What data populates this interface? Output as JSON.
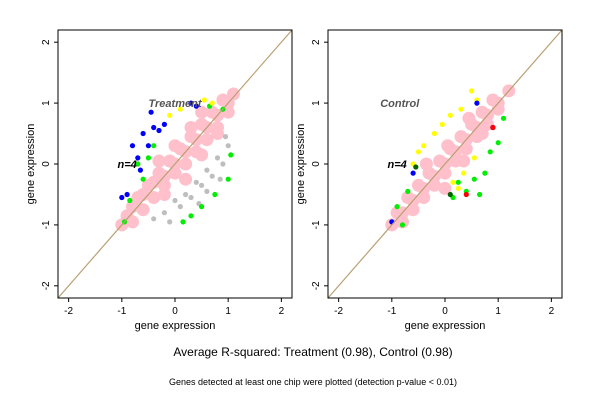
{
  "caption": "Average R-squared: Treatment (0.98), Control (0.98)",
  "footnote": "Genes detected at least one chip were plotted (detection p-value < 0.01)",
  "chart_data": [
    {
      "type": "scatter",
      "title": "Treatment",
      "annotation": "n=4",
      "xlabel": "gene expression",
      "ylabel": "gene expression",
      "xlim": [
        -2.2,
        2.2
      ],
      "ylim": [
        -2.2,
        2.2
      ],
      "x_ticks": [
        -2,
        -1,
        0,
        1,
        2
      ],
      "y_ticks": [
        -2,
        -1,
        0,
        1,
        2
      ],
      "grid": false,
      "reference_line": {
        "slope": 1,
        "intercept": 0,
        "color": "#b9a072"
      },
      "series": [
        {
          "color": "#ffc0cb",
          "role": "bulk",
          "points": [
            [
              -1.0,
              -1.0
            ],
            [
              -0.8,
              -0.7
            ],
            [
              -0.6,
              -0.5
            ],
            [
              -0.4,
              -0.3
            ],
            [
              -0.2,
              -0.2
            ],
            [
              0.0,
              0.0
            ],
            [
              0.2,
              0.2
            ],
            [
              0.4,
              0.4
            ],
            [
              0.6,
              0.6
            ],
            [
              0.8,
              0.8
            ],
            [
              1.0,
              1.0
            ],
            [
              1.1,
              1.15
            ],
            [
              -0.9,
              -0.85
            ],
            [
              -0.7,
              -0.55
            ],
            [
              -0.5,
              -0.35
            ],
            [
              -0.3,
              -0.15
            ],
            [
              -0.1,
              0.05
            ],
            [
              0.1,
              0.25
            ],
            [
              0.3,
              0.45
            ],
            [
              0.5,
              0.65
            ],
            [
              0.7,
              0.85
            ],
            [
              0.9,
              1.05
            ],
            [
              -0.8,
              -0.95
            ],
            [
              -0.6,
              -0.75
            ],
            [
              -0.4,
              -0.55
            ],
            [
              -0.2,
              -0.35
            ],
            [
              0.0,
              -0.15
            ],
            [
              0.2,
              0.0
            ],
            [
              0.4,
              0.2
            ],
            [
              0.6,
              0.4
            ],
            [
              0.8,
              0.6
            ],
            [
              1.0,
              0.85
            ],
            [
              -0.3,
              0.05
            ],
            [
              0.0,
              0.3
            ],
            [
              0.3,
              0.6
            ],
            [
              0.5,
              0.85
            ],
            [
              -0.2,
              -0.5
            ],
            [
              0.2,
              -0.25
            ],
            [
              0.5,
              0.15
            ],
            [
              0.8,
              0.5
            ]
          ]
        },
        {
          "color": "#bebebe",
          "role": "grey",
          "points": [
            [
              0.0,
              -0.6
            ],
            [
              0.2,
              -0.5
            ],
            [
              0.4,
              -0.3
            ],
            [
              0.6,
              -0.1
            ],
            [
              0.8,
              0.1
            ],
            [
              1.0,
              0.3
            ],
            [
              -0.2,
              -0.8
            ],
            [
              0.1,
              -0.7
            ],
            [
              0.3,
              -0.55
            ],
            [
              0.5,
              -0.35
            ],
            [
              0.7,
              -0.2
            ],
            [
              0.9,
              0.0
            ],
            [
              0.6,
              -0.45
            ],
            [
              0.85,
              -0.25
            ],
            [
              -0.4,
              -0.9
            ],
            [
              0.45,
              -0.65
            ],
            [
              0.95,
              0.45
            ],
            [
              -0.1,
              -0.95
            ]
          ]
        },
        {
          "color": "#00ee00",
          "role": "green",
          "points": [
            [
              -0.7,
              0.0
            ],
            [
              -0.5,
              0.1
            ],
            [
              -0.85,
              -0.6
            ],
            [
              0.3,
              -0.85
            ],
            [
              0.5,
              -0.7
            ],
            [
              0.75,
              -0.5
            ],
            [
              1.0,
              -0.25
            ],
            [
              1.05,
              0.15
            ],
            [
              0.15,
              -0.95
            ],
            [
              -0.6,
              -0.25
            ],
            [
              0.9,
              0.9
            ],
            [
              -0.95,
              -0.95
            ],
            [
              0.65,
              0.95
            ],
            [
              -0.4,
              0.3
            ]
          ]
        },
        {
          "color": "#0000ff",
          "role": "blue",
          "points": [
            [
              -0.6,
              0.5
            ],
            [
              -0.4,
              0.6
            ],
            [
              -0.8,
              0.3
            ],
            [
              -0.5,
              0.3
            ],
            [
              -0.3,
              0.55
            ],
            [
              -0.45,
              0.85
            ],
            [
              -0.7,
              0.1
            ],
            [
              -0.9,
              -0.5
            ],
            [
              0.3,
              1.0
            ],
            [
              -0.2,
              0.65
            ],
            [
              -0.65,
              -0.1
            ],
            [
              -1.0,
              -0.55
            ],
            [
              0.4,
              0.95
            ]
          ]
        },
        {
          "color": "#ffff00",
          "role": "yellow",
          "points": [
            [
              0.55,
              1.05
            ],
            [
              0.7,
              1.0
            ],
            [
              0.1,
              0.9
            ],
            [
              -0.1,
              0.8
            ]
          ]
        }
      ]
    },
    {
      "type": "scatter",
      "title": "Control",
      "annotation": "n=4",
      "xlabel": "gene expression",
      "ylabel": "gene expression",
      "xlim": [
        -2.2,
        2.2
      ],
      "ylim": [
        -2.2,
        2.2
      ],
      "x_ticks": [
        -2,
        -1,
        0,
        1,
        2
      ],
      "y_ticks": [
        -2,
        -1,
        0,
        1,
        2
      ],
      "grid": false,
      "reference_line": {
        "slope": 1,
        "intercept": 0,
        "color": "#b9a072"
      },
      "series": [
        {
          "color": "#ffc0cb",
          "role": "bulk",
          "points": [
            [
              -1.0,
              -1.0
            ],
            [
              -0.8,
              -0.8
            ],
            [
              -0.6,
              -0.6
            ],
            [
              -0.4,
              -0.4
            ],
            [
              -0.2,
              -0.2
            ],
            [
              0.0,
              0.0
            ],
            [
              0.2,
              0.2
            ],
            [
              0.4,
              0.4
            ],
            [
              0.6,
              0.6
            ],
            [
              0.8,
              0.8
            ],
            [
              1.0,
              1.0
            ],
            [
              1.2,
              1.2
            ],
            [
              -0.9,
              -0.8
            ],
            [
              -0.7,
              -0.55
            ],
            [
              -0.5,
              -0.35
            ],
            [
              -0.3,
              -0.15
            ],
            [
              -0.1,
              0.05
            ],
            [
              0.1,
              0.25
            ],
            [
              0.3,
              0.45
            ],
            [
              0.5,
              0.65
            ],
            [
              0.7,
              0.85
            ],
            [
              0.9,
              1.05
            ],
            [
              -0.8,
              -0.95
            ],
            [
              -0.6,
              -0.75
            ],
            [
              -0.4,
              -0.55
            ],
            [
              -0.2,
              -0.35
            ],
            [
              0.0,
              -0.15
            ],
            [
              0.2,
              0.05
            ],
            [
              0.4,
              0.25
            ],
            [
              0.6,
              0.45
            ],
            [
              0.8,
              0.65
            ],
            [
              1.0,
              0.9
            ],
            [
              -0.35,
              0.0
            ],
            [
              0.05,
              0.3
            ],
            [
              0.45,
              0.75
            ],
            [
              0.0,
              -0.4
            ],
            [
              0.35,
              0.05
            ],
            [
              0.7,
              0.5
            ]
          ]
        },
        {
          "color": "#ffff00",
          "role": "yellow",
          "points": [
            [
              -0.4,
              0.3
            ],
            [
              -0.2,
              0.5
            ],
            [
              0.1,
              0.8
            ],
            [
              0.3,
              0.9
            ],
            [
              -0.6,
              0.0
            ],
            [
              0.6,
              1.05
            ],
            [
              0.15,
              -0.3
            ],
            [
              0.35,
              -0.15
            ],
            [
              0.55,
              0.1
            ],
            [
              -0.5,
              0.2
            ],
            [
              0.5,
              1.2
            ],
            [
              -0.05,
              0.65
            ],
            [
              0.25,
              -0.4
            ]
          ]
        },
        {
          "color": "#00ee00",
          "role": "green",
          "points": [
            [
              -0.9,
              -0.7
            ],
            [
              0.55,
              -0.25
            ],
            [
              0.65,
              -0.5
            ],
            [
              0.25,
              -0.3
            ],
            [
              0.75,
              -0.15
            ],
            [
              1.0,
              0.35
            ],
            [
              0.85,
              0.2
            ],
            [
              -0.8,
              -1.0
            ],
            [
              0.15,
              -0.55
            ],
            [
              0.4,
              -0.45
            ],
            [
              -0.7,
              -0.45
            ],
            [
              1.1,
              0.75
            ]
          ]
        },
        {
          "color": "#0000ff",
          "role": "blue",
          "points": [
            [
              -1.0,
              -0.95
            ],
            [
              -0.6,
              -0.15
            ],
            [
              0.6,
              1.0
            ],
            [
              0.9,
              0.6
            ]
          ]
        },
        {
          "color": "#ff0000",
          "role": "red",
          "points": [
            [
              0.9,
              0.6
            ],
            [
              0.4,
              -0.5
            ]
          ]
        },
        {
          "color": "#006400",
          "role": "darkgreen",
          "points": [
            [
              0.1,
              -0.5
            ],
            [
              -0.55,
              -0.05
            ]
          ]
        }
      ]
    }
  ]
}
